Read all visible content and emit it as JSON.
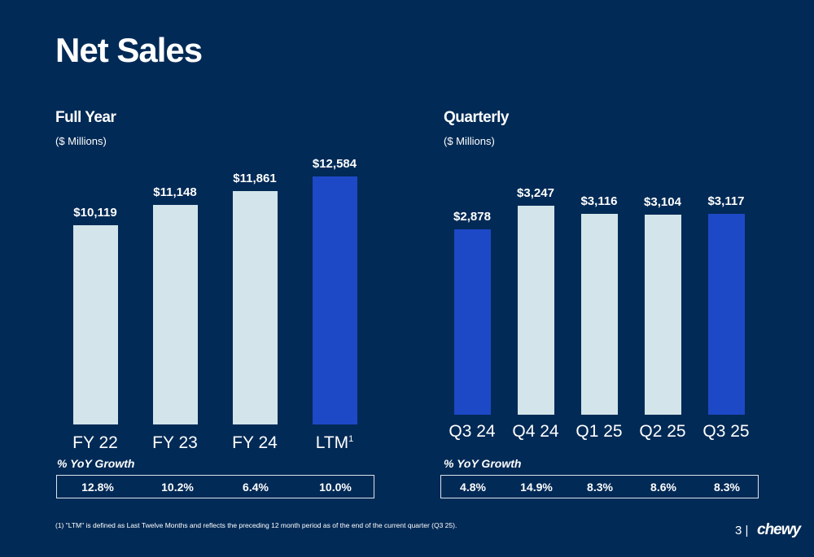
{
  "title": "Net Sales",
  "colors": {
    "background": "#022a56",
    "bar": "#d3e5ea",
    "highlight": "#1d48c6"
  },
  "chart_data": [
    {
      "type": "bar",
      "title": "Full Year",
      "subtitle": "($ Millions)",
      "categories": [
        "FY 22",
        "FY 23",
        "FY 24",
        "LTM"
      ],
      "category_superscripts": [
        "",
        "",
        "",
        "1"
      ],
      "values": [
        10119,
        11148,
        11861,
        12584
      ],
      "value_labels": [
        "$10,119",
        "$11,148",
        "$11,861",
        "$12,584"
      ],
      "highlight": [
        false,
        false,
        false,
        true
      ],
      "growth_label": "% YoY Growth",
      "growth": [
        "12.8%",
        "10.2%",
        "6.4%",
        "10.0%"
      ]
    },
    {
      "type": "bar",
      "title": "Quarterly",
      "subtitle": "($ Millions)",
      "categories": [
        "Q3 24",
        "Q4 24",
        "Q1 25",
        "Q2 25",
        "Q3 25"
      ],
      "category_superscripts": [
        "",
        "",
        "",
        "",
        ""
      ],
      "values": [
        2878,
        3247,
        3116,
        3104,
        3117
      ],
      "value_labels": [
        "$2,878",
        "$3,247",
        "$3,116",
        "$3,104",
        "$3,117"
      ],
      "highlight": [
        true,
        false,
        false,
        false,
        true
      ],
      "growth_label": "% YoY Growth",
      "growth": [
        "4.8%",
        "14.9%",
        "8.3%",
        "8.6%",
        "8.3%"
      ]
    }
  ],
  "footnote": "(1)    \"LTM\" is defined as Last Twelve Months and reflects the preceding 12 month period as of the end of the current quarter (Q3 25).",
  "page_number": "3  |",
  "logo": "chewy"
}
